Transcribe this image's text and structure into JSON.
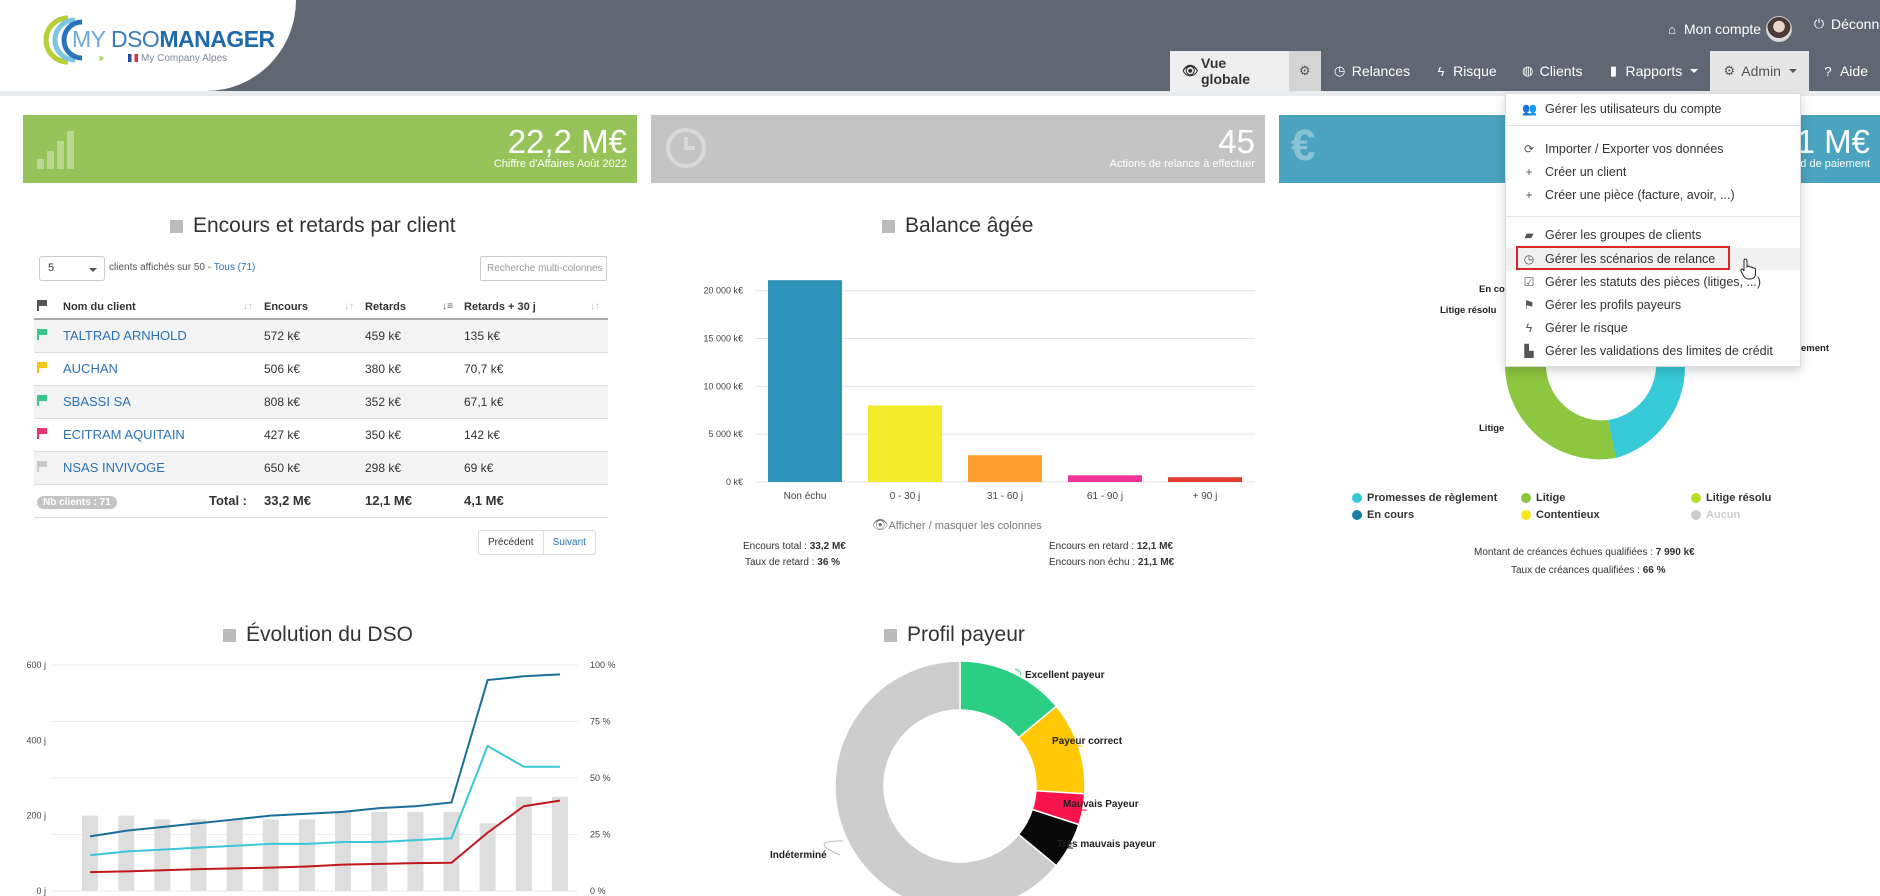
{
  "header": {
    "logo": {
      "my": "MY",
      "dso": "DSO",
      "manager": "MANAGER",
      "company": "My Company Alpes"
    },
    "account_label": "Mon compte",
    "logout_label": "Déconne",
    "nav": [
      {
        "label": "Vue globale",
        "icon": "eye-icon"
      },
      {
        "label": "",
        "icon": "gear-icon"
      },
      {
        "label": "Relances",
        "icon": "clock-icon"
      },
      {
        "label": "Risque",
        "icon": "bolt-icon"
      },
      {
        "label": "Clients",
        "icon": "globe-icon"
      },
      {
        "label": "Rapports",
        "icon": "bar-chart-icon"
      },
      {
        "label": "Admin",
        "icon": "gear-icon"
      },
      {
        "label": "Aide",
        "icon": "question-icon"
      }
    ]
  },
  "kpis": [
    {
      "value": "22,2 M€",
      "label": "Chiffre d'Affaires Août 2022",
      "color": "#97c459"
    },
    {
      "value": "45",
      "label": "Actions de relance à effectuer",
      "color": "#c4c4c4"
    },
    {
      "value": ",1 M€",
      "label": "ard de paiement",
      "color": "#4aa3bf"
    }
  ],
  "clients_table": {
    "title": "Encours et retards par client",
    "page_size": "5",
    "shown_text": "clients affichés sur 50 -",
    "all_link": "Tous (71)",
    "search_placeholder": "Recherche multi-colonnes",
    "columns": [
      "Nom du client",
      "Encours",
      "Retards",
      "Retards + 30 j"
    ],
    "rows": [
      {
        "name": "TALTRAD ARNHOLD",
        "encours": "572 k€",
        "retards": "459 k€",
        "retards30": "135 k€",
        "flag": "#3cc58a"
      },
      {
        "name": "AUCHAN",
        "encours": "506 k€",
        "retards": "380 k€",
        "retards30": "70,7 k€",
        "flag": "#f5c518"
      },
      {
        "name": "SBASSI SA",
        "encours": "808 k€",
        "retards": "352 k€",
        "retards30": "67,1 k€",
        "flag": "#3cc58a"
      },
      {
        "name": "ECITRAM AQUITAIN",
        "encours": "427 k€",
        "retards": "350 k€",
        "retards30": "142 k€",
        "flag": "#e8336b"
      },
      {
        "name": "NSAS INVIVOGE",
        "encours": "650 k€",
        "retards": "298 k€",
        "retards30": "69 k€",
        "flag": "#c8c8c8"
      }
    ],
    "total_badge": "Nb clients : 71",
    "total_label": "Total :",
    "total_encours": "33,2 M€",
    "total_retards": "12,1 M€",
    "total_retards30": "4,1 M€",
    "prev": "Précédent",
    "next": "Suivant"
  },
  "balance": {
    "title": "Balance âgée",
    "toggle": "Afficher / masquer les colonnes",
    "stats": {
      "encours_total_label": "Encours total :",
      "encours_total": "33,2 M€",
      "taux_label": "Taux de retard :",
      "taux": "36 %",
      "encours_retard_label": "Encours en retard :",
      "encours_retard": "12,1 M€",
      "non_echu_label": "Encours non échu :",
      "non_echu": "21,1 M€"
    }
  },
  "litiges": {
    "labels": {
      "en_cours": "En co",
      "litige_resolu": "Litige résolu",
      "litige": "Litige",
      "promesses": "ement"
    },
    "legend": [
      {
        "label": "Promesses de règlement",
        "color": "#36c9d6"
      },
      {
        "label": "Litige",
        "color": "#8dc63f"
      },
      {
        "label": "Litige résolu",
        "color": "#b4e02a"
      },
      {
        "label": "En cours",
        "color": "#1a7fa8"
      },
      {
        "label": "Contentieux",
        "color": "#f5e81c"
      },
      {
        "label": "Aucun",
        "color": "#cccccc"
      }
    ],
    "montant_label": "Montant de créances échues qualifiées :",
    "montant": "7 990 k€",
    "taux_label": "Taux de créances qualifiées :",
    "taux": "66 %"
  },
  "dso": {
    "title": "Évolution du DSO"
  },
  "payeur": {
    "title": "Profil payeur"
  },
  "admin_menu": [
    {
      "label": "Gérer les utilisateurs du compte",
      "icon": "users-icon"
    },
    {
      "label": "Importer / Exporter vos données",
      "icon": "refresh-icon"
    },
    {
      "label": "Créer un client",
      "icon": "plus-icon"
    },
    {
      "label": "Créer une pièce (facture, avoir, ...)",
      "icon": "plus-icon"
    },
    {
      "label": "Gérer les groupes de clients",
      "icon": "folder-icon"
    },
    {
      "label": "Gérer les scénarios de relance",
      "icon": "clock-icon"
    },
    {
      "label": "Gérer les statuts des pièces (litiges, ...)",
      "icon": "checkbox-icon"
    },
    {
      "label": "Gérer les profils payeurs",
      "icon": "flag-icon"
    },
    {
      "label": "Gérer le risque",
      "icon": "bolt-icon"
    },
    {
      "label": "Gérer les validations des limites de crédit",
      "icon": "validation-icon"
    }
  ],
  "chart_data": [
    {
      "type": "bar",
      "title": "Balance âgée",
      "categories": [
        "Non échu",
        "0 - 30 j",
        "31 - 60 j",
        "61 - 90 j",
        "+ 90 j"
      ],
      "values": [
        21100,
        8000,
        2800,
        700,
        500
      ],
      "colors": [
        "#2e93b8",
        "#f2ec2c",
        "#fd9e2f",
        "#f0349a",
        "#e33b2d"
      ],
      "y_ticks": [
        "0 k€",
        "5 000 k€",
        "10 000 k€",
        "15 000 k€",
        "20 000 k€"
      ],
      "ylim": [
        0,
        23000
      ],
      "grid": true
    },
    {
      "type": "pie",
      "title": "Profil payeur",
      "slices": [
        {
          "label": "Excellent payeur",
          "value": 14,
          "color": "#2bcf83"
        },
        {
          "label": "Payeur correct",
          "value": 12,
          "color": "#fec804"
        },
        {
          "label": "Mauvais Payeur",
          "value": 4,
          "color": "#f8134d"
        },
        {
          "label": "Très mauvais payeur",
          "value": 6,
          "color": "#080808"
        },
        {
          "label": "Indéterminé",
          "value": 64,
          "color": "#cdcdcd"
        }
      ]
    },
    {
      "type": "line",
      "title": "Évolution du DSO",
      "left_ticks": [
        "0 j",
        "200 j",
        "400 j",
        "600 j"
      ],
      "right_ticks": [
        "0 %",
        "25 %",
        "50 %",
        "75 %",
        "100 %"
      ],
      "ylim_left": [
        0,
        600
      ],
      "ylim_right": [
        0,
        100
      ],
      "bars": [
        200,
        200,
        190,
        190,
        190,
        190,
        190,
        210,
        210,
        210,
        210,
        180,
        250,
        250
      ],
      "series": [
        {
          "color": "#1a6f99",
          "values": [
            145,
            160,
            170,
            180,
            190,
            200,
            205,
            210,
            220,
            225,
            235,
            560,
            570,
            575
          ]
        },
        {
          "color": "#3ac7d6",
          "values": [
            95,
            105,
            110,
            115,
            120,
            125,
            125,
            130,
            130,
            135,
            140,
            385,
            330,
            330
          ]
        },
        {
          "color": "#c0181f",
          "values": [
            50,
            52,
            55,
            58,
            60,
            62,
            65,
            70,
            72,
            74,
            75,
            155,
            225,
            240
          ]
        }
      ]
    }
  ]
}
